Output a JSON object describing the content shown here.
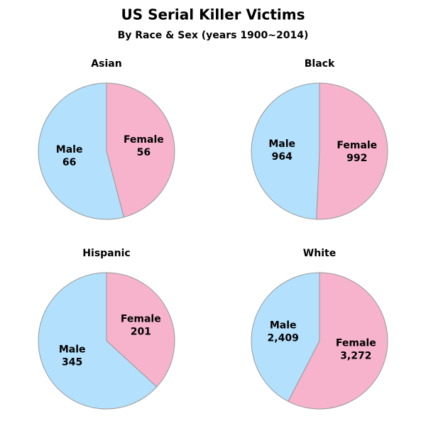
{
  "title": "US Serial Killer Victims",
  "subtitle": "By Race & Sex (years 1900~2014)",
  "chart_data": [
    {
      "type": "pie",
      "title": "Asian",
      "categories": [
        "Female",
        "Male"
      ],
      "values": [
        56,
        66
      ],
      "colors": [
        "#f7b3cc",
        "#b3e0fc"
      ]
    },
    {
      "type": "pie",
      "title": "Black",
      "categories": [
        "Female",
        "Male"
      ],
      "values": [
        992,
        964
      ],
      "colors": [
        "#f7b3cc",
        "#b3e0fc"
      ]
    },
    {
      "type": "pie",
      "title": "Hispanic",
      "categories": [
        "Female",
        "Male"
      ],
      "values": [
        201,
        345
      ],
      "colors": [
        "#f7b3cc",
        "#b3e0fc"
      ]
    },
    {
      "type": "pie",
      "title": "White",
      "categories": [
        "Female",
        "Male"
      ],
      "values": [
        3272,
        2409
      ],
      "value_labels": [
        "3,272",
        "2,409"
      ],
      "colors": [
        "#f7b3cc",
        "#b3e0fc"
      ]
    }
  ]
}
